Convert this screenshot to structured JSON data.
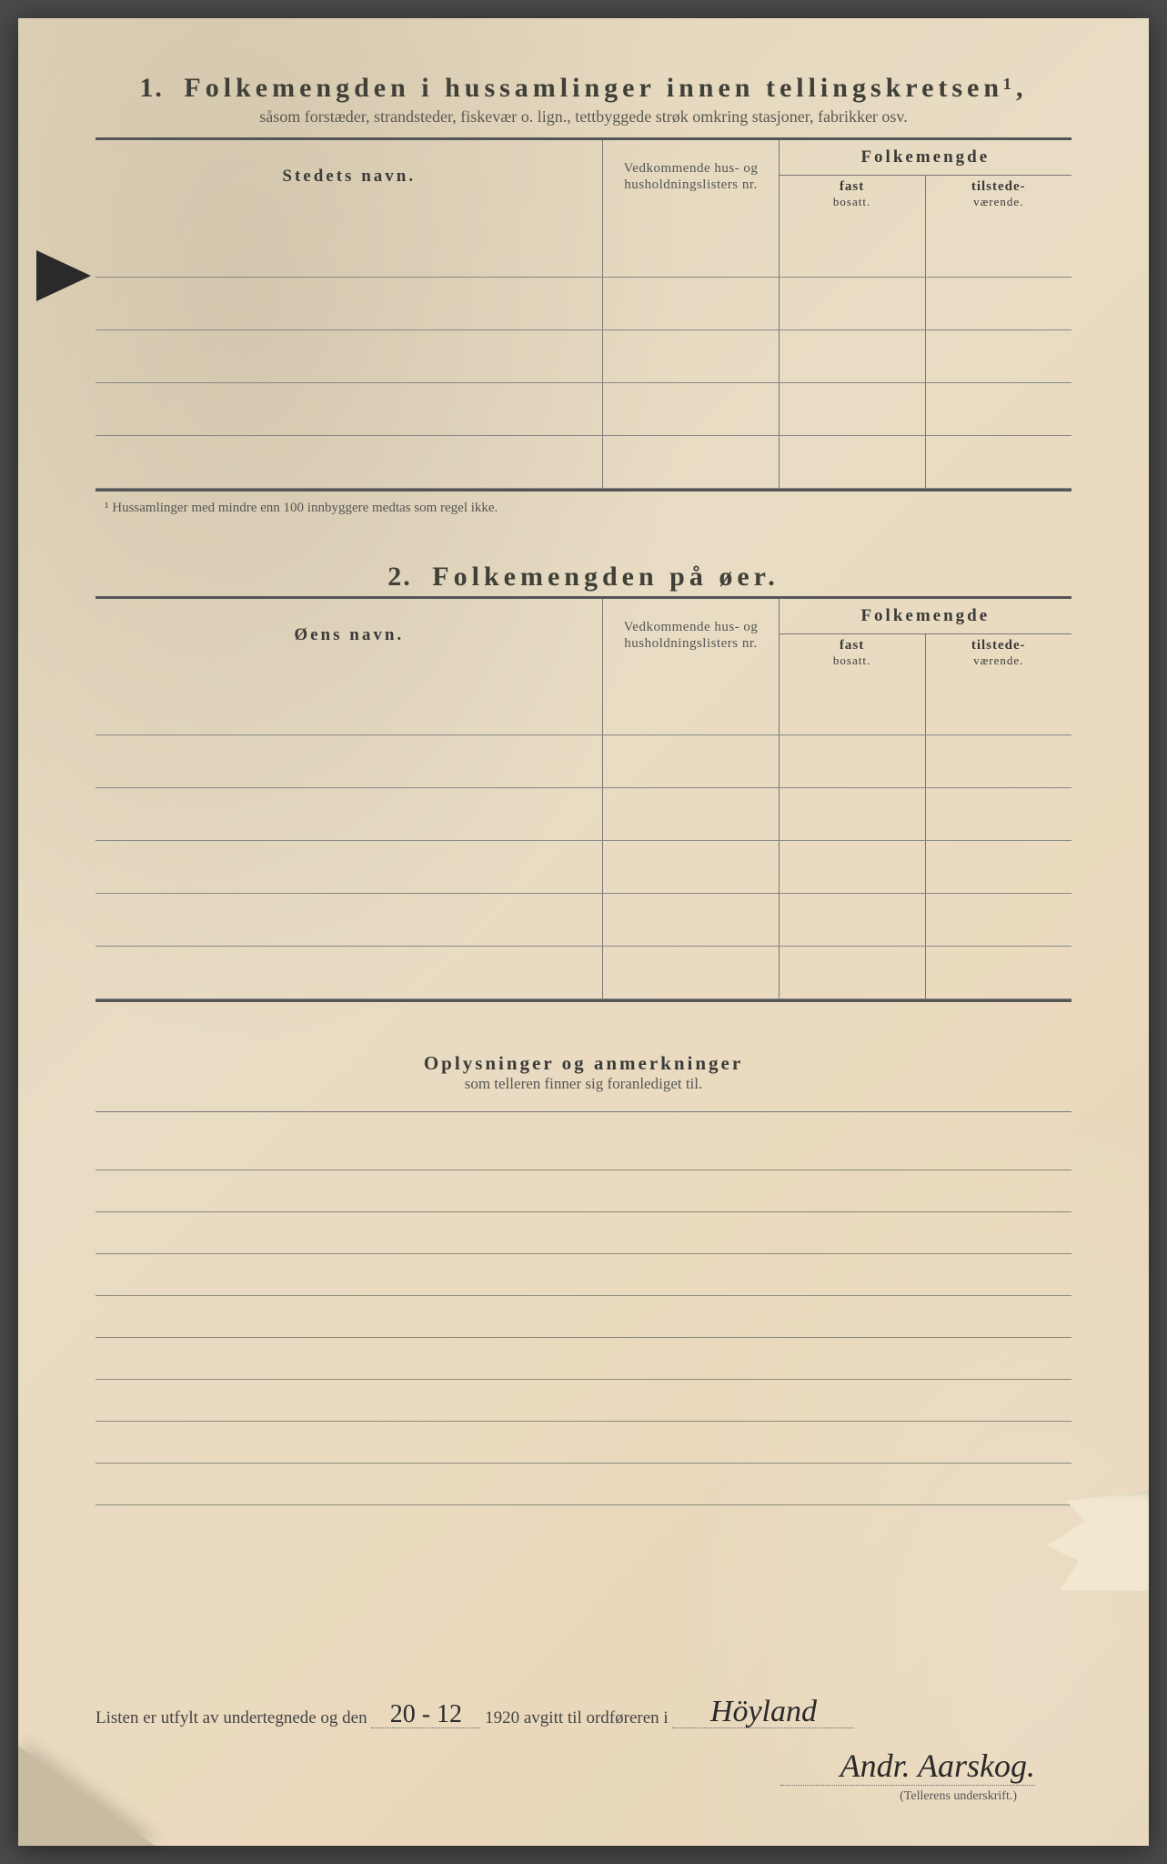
{
  "section1": {
    "number": "1.",
    "title": "Folkemengden i hussamlinger innen tellingskretsen¹,",
    "subtitle": "såsom forstæder, strandsteder, fiskevær o. lign., tettbyggede strøk omkring stasjoner, fabrikker osv.",
    "col_name": "Stedets navn.",
    "col_ref": "Vedkommende hus- og husholdningslisters nr.",
    "col_pop": "Folkemengde",
    "col_fast": "fast",
    "col_fast_sub": "bosatt.",
    "col_til": "tilstede-",
    "col_til_sub": "værende.",
    "footnote": "¹ Hussamlinger med mindre enn 100 innbyggere medtas som regel ikke."
  },
  "section2": {
    "number": "2.",
    "title": "Folkemengden på øer.",
    "col_name": "Øens navn.",
    "col_ref": "Vedkommende hus- og husholdningslisters nr.",
    "col_pop": "Folkemengde",
    "col_fast": "fast",
    "col_fast_sub": "bosatt.",
    "col_til": "tilstede-",
    "col_til_sub": "værende."
  },
  "section3": {
    "title": "Oplysninger og anmerkninger",
    "subtitle": "som telleren finner sig foranlediget til."
  },
  "signature": {
    "prefix": "Listen er utfylt av undertegnede og den",
    "date": "20 - 12",
    "year": "1920",
    "mid": "avgitt til ordføreren i",
    "place": "Höyland",
    "name": "Andr. Aarskog.",
    "caption": "(Tellerens underskrift.)"
  },
  "layout": {
    "section1_rows": 5,
    "section2_rows": 6,
    "remark_lines": 9
  },
  "colors": {
    "paper": "#e8dcc4",
    "ink": "#3a3a38",
    "rule": "#777777"
  }
}
